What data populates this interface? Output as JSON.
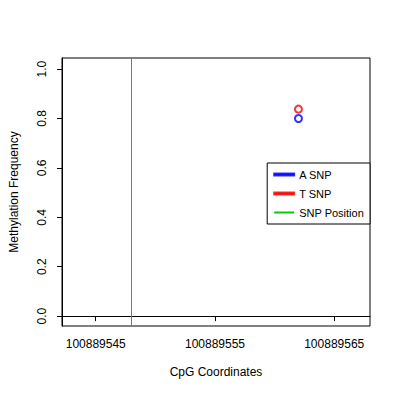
{
  "chart_data": {
    "type": "scatter",
    "x_label": "CpG Coordinates",
    "y_label": "Methylation Frequency",
    "xlim": [
      100889542.17,
      100889568
    ],
    "xticks": [
      100889545,
      100889555,
      100889565
    ],
    "ylim": [
      -0.04,
      1.045
    ],
    "yticks": [
      {
        "value": 0,
        "label": "0.0"
      },
      0.2,
      0.4,
      0.6,
      0.8,
      {
        "value": 1,
        "label": "1.0"
      }
    ],
    "grid": false,
    "legend": "right",
    "series": [
      {
        "name": "A SNP",
        "color": "#0000ff",
        "type": "scatter",
        "marker": "circle",
        "x": [
          100889562
        ],
        "values": [
          0.8
        ]
      },
      {
        "name": "T SNP",
        "color": "#ff0000",
        "type": "scatter",
        "marker": "circle",
        "x": [
          100889562
        ],
        "values": [
          0.838
        ]
      },
      {
        "name": "SNP Position",
        "color": "#00cc00",
        "type": "vline",
        "x": [
          100889548
        ]
      }
    ]
  }
}
